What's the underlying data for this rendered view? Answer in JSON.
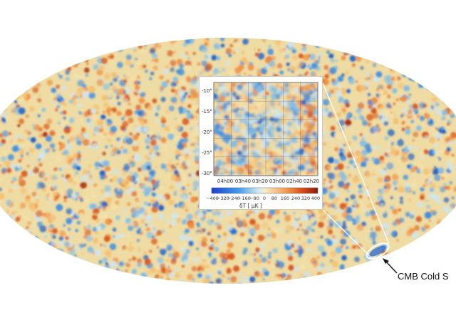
{
  "colors": {
    "background": "#ffffff",
    "cold": "#1e63c9",
    "neutral": "#f2e2a8",
    "hot": "#cf4a16",
    "callout_ring": "#3b78d8"
  },
  "inset": {
    "y_ticks": [
      "-10°",
      "-15°",
      "-20°",
      "-25°",
      "-30°"
    ],
    "x_ticks": [
      "04h00",
      "03h40",
      "03h20",
      "03h00",
      "02h40",
      "02h20"
    ],
    "colorbar_ticks": [
      "−400",
      "−320",
      "−240",
      "−160",
      "−80",
      "0",
      "80",
      "160",
      "240",
      "320",
      "400"
    ],
    "colorbar_label": "δT [ μK ]"
  },
  "callout_label": "CMB Cold S"
}
